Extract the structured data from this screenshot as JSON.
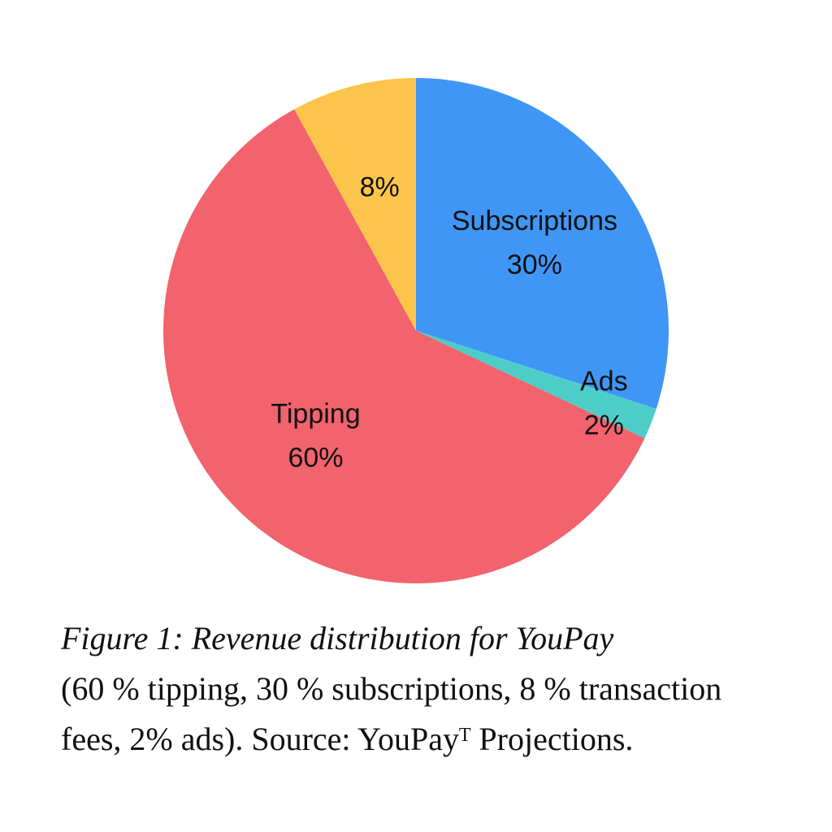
{
  "chart_data": {
    "type": "pie",
    "title": "Figure 1: Revenue distribution for YouPay",
    "caption": "(60 % tipping, 30 % subscriptions, 8 % transaction fees, 2% ads). Source: YouPayᵀ Projections.",
    "categories": [
      "Subscriptions",
      "Ads",
      "Tipping",
      null
    ],
    "values": [
      30,
      2,
      60,
      8
    ],
    "value_labels": [
      "30%",
      "2%",
      "60%",
      "8%"
    ],
    "colors": [
      "#4096f5",
      "#4ecdc8",
      "#f2636d",
      "#fbc54b"
    ]
  }
}
